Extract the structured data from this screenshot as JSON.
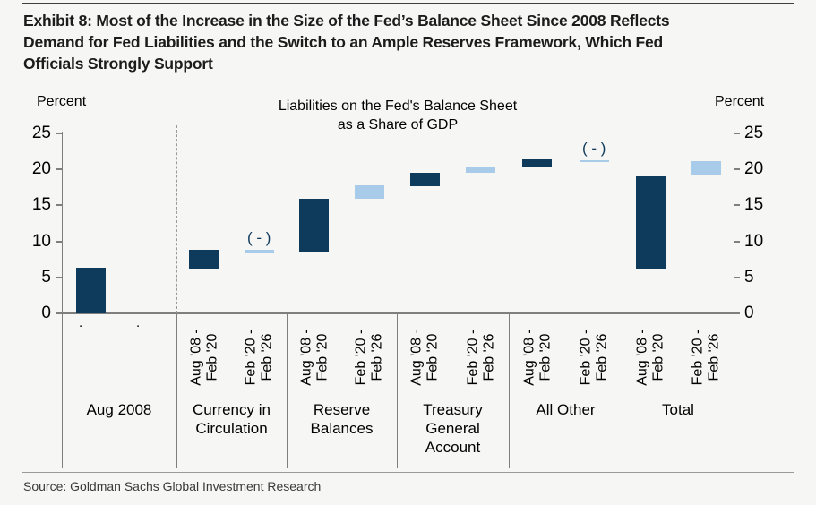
{
  "header": {
    "title_lines": [
      "Exhibit 8: Most of the Increase in the Size of the Fed’s Balance Sheet Since 2008 Reflects",
      "Demand for Fed Liabilities and the Switch to an Ample Reserves Framework, Which Fed",
      "Officials Strongly Support"
    ]
  },
  "footer": {
    "source": "Source: Goldman Sachs Global Investment Research"
  },
  "chart_data": {
    "type": "bar",
    "subtype": "waterfall",
    "title_lines": [
      "Liabilities on the Fed's Balance Sheet",
      "as a Share of GDP"
    ],
    "ylabel_left": "Percent",
    "ylabel_right": "Percent",
    "ylim": [
      0,
      25
    ],
    "yticks": [
      25,
      20,
      15,
      10,
      5,
      0
    ],
    "grid": false,
    "series": {
      "aug08_feb20": {
        "name": "Aug '08 - Feb '20",
        "color": "#0e3a5c"
      },
      "feb20_feb26": {
        "name": "Feb '20 - Feb '26",
        "color": "#a7cbe8"
      }
    },
    "negative_marker_text": "( - )",
    "groups": [
      {
        "label": "Aug 2008",
        "bars": [
          {
            "tick_label": ".",
            "series": "aug08_feb20",
            "from": 0,
            "to": 6.3
          },
          {
            "tick_label": ".",
            "series": null
          }
        ]
      },
      {
        "label": "Currency in Circulation",
        "dashed_divider_before": true,
        "bars": [
          {
            "tick_label": "Aug '08 -\nFeb '20",
            "series": "aug08_feb20",
            "from": 6.2,
            "to": 8.8
          },
          {
            "tick_label": "Feb '20 -\nFeb '26",
            "series": "feb20_feb26",
            "from": 8.8,
            "to": 8.3,
            "negative": true
          }
        ]
      },
      {
        "label": "Reserve Balances",
        "bars": [
          {
            "tick_label": "Aug '08 -\nFeb '20",
            "series": "aug08_feb20",
            "from": 8.4,
            "to": 15.9
          },
          {
            "tick_label": "Feb '20 -\nFeb '26",
            "series": "feb20_feb26",
            "from": 15.9,
            "to": 17.8
          }
        ]
      },
      {
        "label": "Treasury General Account",
        "bars": [
          {
            "tick_label": "Aug '08 -\nFeb '20",
            "series": "aug08_feb20",
            "from": 17.7,
            "to": 19.5
          },
          {
            "tick_label": "Feb '20 -\nFeb '26",
            "series": "feb20_feb26",
            "from": 19.5,
            "to": 20.4
          }
        ]
      },
      {
        "label": "All Other",
        "bars": [
          {
            "tick_label": "Aug '08 -\nFeb '20",
            "series": "aug08_feb20",
            "from": 20.4,
            "to": 21.4
          },
          {
            "tick_label": "Feb '20 -\nFeb '26",
            "series": "feb20_feb26",
            "from": 21.3,
            "to": 21.05,
            "negative": true
          }
        ]
      },
      {
        "label": "Total",
        "dashed_divider_before": true,
        "bars": [
          {
            "tick_label": "Aug '08 -\nFeb '20",
            "series": "aug08_feb20",
            "from": 6.2,
            "to": 19.0
          },
          {
            "tick_label": "Feb '20 -\nFeb '26",
            "series": "feb20_feb26",
            "from": 19.2,
            "to": 21.1
          }
        ]
      }
    ]
  }
}
